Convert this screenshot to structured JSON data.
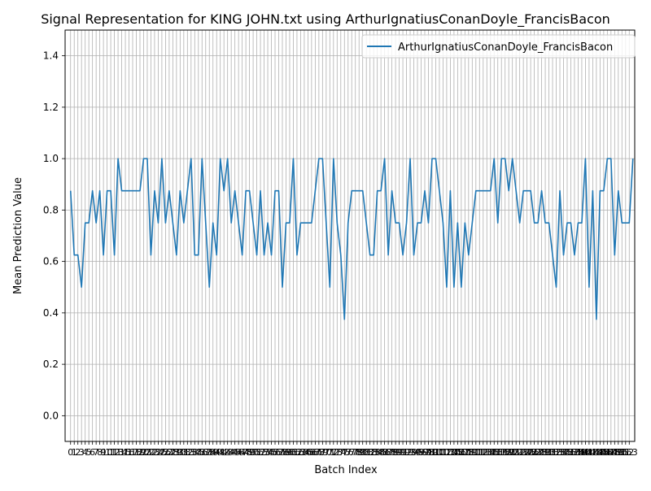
{
  "chart_data": {
    "type": "line",
    "title": "Signal Representation for KING JOHN.txt using ArthurIgnatiusConanDoyle_FrancisBacon",
    "xlabel": "Batch Index",
    "ylabel": "Mean Prediction Value",
    "xlim": [
      -1.5,
      154.5
    ],
    "ylim": [
      -0.1,
      1.5
    ],
    "grid": true,
    "legend_position": "top-right",
    "y_ticks": [
      0.0,
      0.2,
      0.4,
      0.6,
      0.8,
      1.0,
      1.2,
      1.4
    ],
    "x_ticks_first": 0,
    "x_ticks_last": 153,
    "colors": {
      "series": "#1f77b4",
      "grid": "#b0b0b0"
    },
    "series": [
      {
        "name": "ArthurIgnatiusConanDoyle_FrancisBacon",
        "values": [
          0.875,
          0.625,
          0.625,
          0.5,
          0.75,
          0.75,
          0.875,
          0.75,
          0.875,
          0.625,
          0.875,
          0.875,
          0.625,
          1.0,
          0.875,
          0.875,
          0.875,
          0.875,
          0.875,
          0.875,
          1.0,
          1.0,
          0.625,
          0.875,
          0.75,
          1.0,
          0.75,
          0.875,
          0.75,
          0.625,
          0.875,
          0.75,
          0.875,
          1.0,
          0.625,
          0.625,
          1.0,
          0.75,
          0.5,
          0.75,
          0.625,
          1.0,
          0.875,
          1.0,
          0.75,
          0.875,
          0.75,
          0.625,
          0.875,
          0.875,
          0.75,
          0.625,
          0.875,
          0.625,
          0.75,
          0.625,
          0.875,
          0.875,
          0.5,
          0.75,
          0.75,
          1.0,
          0.625,
          0.75,
          0.75,
          0.75,
          0.75,
          0.875,
          1.0,
          1.0,
          0.75,
          0.5,
          1.0,
          0.75,
          0.625,
          0.375,
          0.75,
          0.875,
          0.875,
          0.875,
          0.875,
          0.75,
          0.625,
          0.625,
          0.875,
          0.875,
          1.0,
          0.625,
          0.875,
          0.75,
          0.75,
          0.625,
          0.75,
          1.0,
          0.625,
          0.75,
          0.75,
          0.875,
          0.75,
          1.0,
          1.0,
          0.875,
          0.75,
          0.5,
          0.875,
          0.5,
          0.75,
          0.5,
          0.75,
          0.625,
          0.75,
          0.875,
          0.875,
          0.875,
          0.875,
          0.875,
          1.0,
          0.75,
          1.0,
          1.0,
          0.875,
          1.0,
          0.875,
          0.75,
          0.875,
          0.875,
          0.875,
          0.75,
          0.75,
          0.875,
          0.75,
          0.75,
          0.625,
          0.5,
          0.875,
          0.625,
          0.75,
          0.75,
          0.625,
          0.75,
          0.75,
          1.0,
          0.5,
          0.875,
          0.375,
          0.875,
          0.875,
          1.0,
          1.0,
          0.625,
          0.875,
          0.75,
          0.75,
          0.75,
          1.0
        ]
      }
    ]
  }
}
